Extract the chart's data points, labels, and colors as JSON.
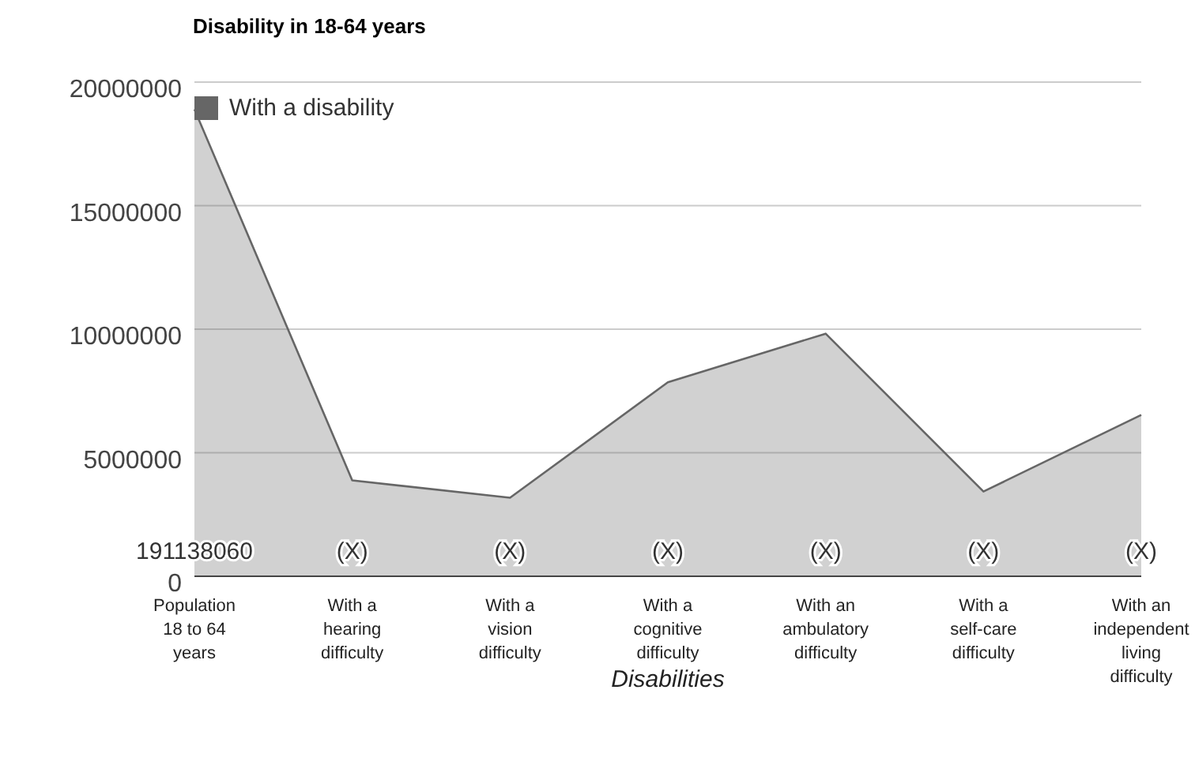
{
  "chart_data": {
    "type": "area",
    "title": "Disability in 18-64 years",
    "xlabel": "Disabilities",
    "categories": [
      "Population 18 to 64 years",
      "With a hearing difficulty",
      "With a vision difficulty",
      "With a cognitive difficulty",
      "With an ambulatory difficulty",
      "With a self-care difficulty",
      "With an independent living difficulty"
    ],
    "series": [
      {
        "name": "With a disability",
        "color": "#666666",
        "values": [
          18900000,
          3880000,
          3180000,
          7850000,
          9820000,
          3430000,
          6530000
        ]
      }
    ],
    "annotations": [
      {
        "text": "191138060",
        "x": "Population 18 to 64 years",
        "y": 0
      },
      {
        "text": "(X)",
        "x": "With a hearing difficulty",
        "y": 0
      },
      {
        "text": "(X)",
        "x": "With a vision difficulty",
        "y": 0
      },
      {
        "text": "(X)",
        "x": "With a cognitive difficulty",
        "y": 0
      },
      {
        "text": "(X)",
        "x": "With an ambulatory difficulty",
        "y": 0
      },
      {
        "text": "(X)",
        "x": "With a self-care difficulty",
        "y": 0
      },
      {
        "text": "(X)",
        "x": "With an independent living difficulty",
        "y": 0
      }
    ],
    "ylim": [
      0,
      20000000
    ],
    "yticks": [
      0,
      5000000,
      10000000,
      15000000,
      20000000
    ],
    "grid": "y",
    "legend": "top left"
  }
}
